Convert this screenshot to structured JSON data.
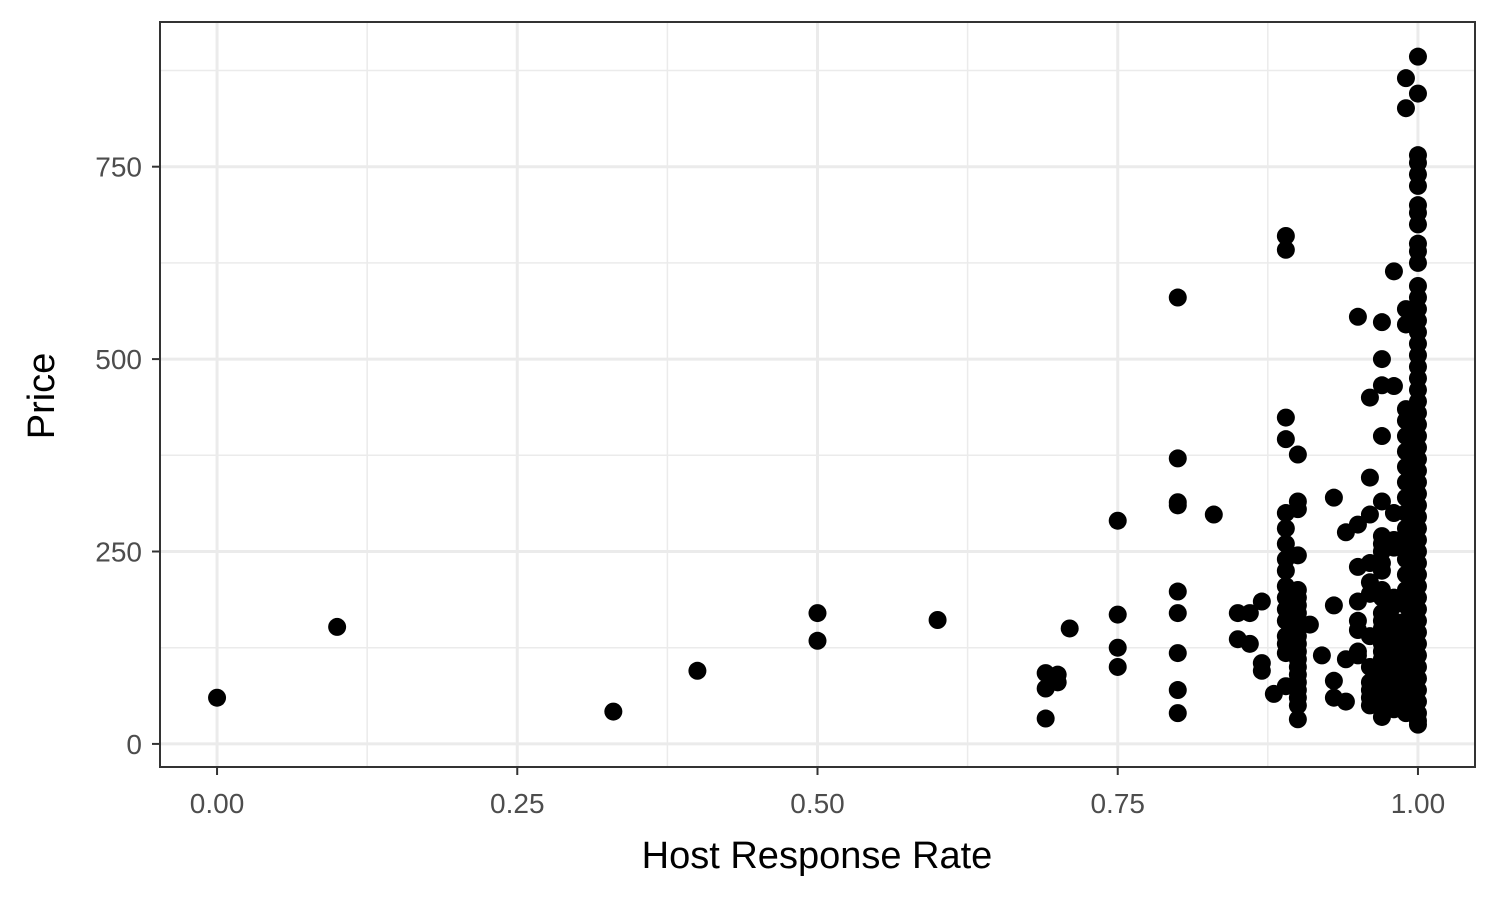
{
  "chart_data": {
    "type": "scatter",
    "title": "",
    "xlabel": "Host Response Rate",
    "ylabel": "Price",
    "xlim": [
      -0.0475,
      1.0475
    ],
    "ylim": [
      -30,
      938
    ],
    "grid": true,
    "x_ticks": [
      {
        "value": 0,
        "label": "0.00"
      },
      {
        "value": 0.25,
        "label": "0.25"
      },
      {
        "value": 0.5,
        "label": "0.50"
      },
      {
        "value": 0.75,
        "label": "0.75"
      },
      {
        "value": 1,
        "label": "1.00"
      }
    ],
    "y_ticks": [
      {
        "value": 0,
        "label": "0"
      },
      {
        "value": 250,
        "label": "250"
      },
      {
        "value": 500,
        "label": "500"
      },
      {
        "value": 750,
        "label": "750"
      }
    ],
    "point_color": "#000000",
    "points": [
      [
        0.0,
        60
      ],
      [
        0.1,
        152
      ],
      [
        0.33,
        42
      ],
      [
        0.4,
        95
      ],
      [
        0.5,
        170
      ],
      [
        0.5,
        134
      ],
      [
        0.6,
        161
      ],
      [
        0.69,
        92
      ],
      [
        0.69,
        72
      ],
      [
        0.69,
        33
      ],
      [
        0.7,
        90
      ],
      [
        0.7,
        80
      ],
      [
        0.71,
        150
      ],
      [
        0.75,
        290
      ],
      [
        0.75,
        168
      ],
      [
        0.75,
        125
      ],
      [
        0.75,
        100
      ],
      [
        0.8,
        580
      ],
      [
        0.8,
        371
      ],
      [
        0.8,
        314
      ],
      [
        0.8,
        310
      ],
      [
        0.8,
        198
      ],
      [
        0.8,
        170
      ],
      [
        0.8,
        118
      ],
      [
        0.8,
        70
      ],
      [
        0.8,
        40
      ],
      [
        0.83,
        298
      ],
      [
        0.85,
        170
      ],
      [
        0.85,
        136
      ],
      [
        0.86,
        170
      ],
      [
        0.86,
        130
      ],
      [
        0.87,
        185
      ],
      [
        0.87,
        105
      ],
      [
        0.87,
        95
      ],
      [
        0.88,
        65
      ],
      [
        0.89,
        660
      ],
      [
        0.89,
        642
      ],
      [
        0.89,
        424
      ],
      [
        0.89,
        396
      ],
      [
        0.89,
        300
      ],
      [
        0.89,
        280
      ],
      [
        0.89,
        260
      ],
      [
        0.89,
        240
      ],
      [
        0.89,
        225
      ],
      [
        0.89,
        205
      ],
      [
        0.89,
        190
      ],
      [
        0.89,
        175
      ],
      [
        0.89,
        160
      ],
      [
        0.89,
        140
      ],
      [
        0.89,
        130
      ],
      [
        0.89,
        118
      ],
      [
        0.89,
        75
      ],
      [
        0.9,
        376
      ],
      [
        0.9,
        315
      ],
      [
        0.9,
        305
      ],
      [
        0.9,
        245
      ],
      [
        0.9,
        200
      ],
      [
        0.9,
        190
      ],
      [
        0.9,
        180
      ],
      [
        0.9,
        170
      ],
      [
        0.9,
        160
      ],
      [
        0.9,
        150
      ],
      [
        0.9,
        140
      ],
      [
        0.9,
        130
      ],
      [
        0.9,
        120
      ],
      [
        0.9,
        110
      ],
      [
        0.9,
        100
      ],
      [
        0.9,
        90
      ],
      [
        0.9,
        80
      ],
      [
        0.9,
        70
      ],
      [
        0.9,
        60
      ],
      [
        0.9,
        50
      ],
      [
        0.9,
        32
      ],
      [
        0.91,
        155
      ],
      [
        0.92,
        115
      ],
      [
        0.93,
        320
      ],
      [
        0.93,
        180
      ],
      [
        0.93,
        82
      ],
      [
        0.93,
        60
      ],
      [
        0.94,
        275
      ],
      [
        0.94,
        110
      ],
      [
        0.94,
        55
      ],
      [
        0.95,
        555
      ],
      [
        0.95,
        285
      ],
      [
        0.95,
        230
      ],
      [
        0.95,
        185
      ],
      [
        0.95,
        160
      ],
      [
        0.95,
        148
      ],
      [
        0.95,
        120
      ],
      [
        0.95,
        115
      ],
      [
        0.96,
        450
      ],
      [
        0.96,
        346
      ],
      [
        0.96,
        298
      ],
      [
        0.96,
        235
      ],
      [
        0.96,
        210
      ],
      [
        0.96,
        195
      ],
      [
        0.96,
        140
      ],
      [
        0.96,
        100
      ],
      [
        0.96,
        80
      ],
      [
        0.96,
        70
      ],
      [
        0.96,
        60
      ],
      [
        0.96,
        50
      ],
      [
        0.97,
        548
      ],
      [
        0.97,
        500
      ],
      [
        0.97,
        466
      ],
      [
        0.97,
        400
      ],
      [
        0.97,
        315
      ],
      [
        0.97,
        270
      ],
      [
        0.97,
        260
      ],
      [
        0.97,
        250
      ],
      [
        0.97,
        235
      ],
      [
        0.97,
        225
      ],
      [
        0.97,
        200
      ],
      [
        0.97,
        190
      ],
      [
        0.97,
        170
      ],
      [
        0.97,
        160
      ],
      [
        0.97,
        150
      ],
      [
        0.97,
        140
      ],
      [
        0.97,
        130
      ],
      [
        0.97,
        120
      ],
      [
        0.97,
        110
      ],
      [
        0.97,
        100
      ],
      [
        0.97,
        90
      ],
      [
        0.97,
        80
      ],
      [
        0.97,
        70
      ],
      [
        0.97,
        60
      ],
      [
        0.97,
        50
      ],
      [
        0.97,
        35
      ],
      [
        0.98,
        614
      ],
      [
        0.98,
        465
      ],
      [
        0.98,
        300
      ],
      [
        0.98,
        265
      ],
      [
        0.98,
        255
      ],
      [
        0.98,
        190
      ],
      [
        0.98,
        180
      ],
      [
        0.98,
        160
      ],
      [
        0.98,
        145
      ],
      [
        0.98,
        130
      ],
      [
        0.98,
        115
      ],
      [
        0.98,
        100
      ],
      [
        0.98,
        90
      ],
      [
        0.98,
        75
      ],
      [
        0.98,
        65
      ],
      [
        0.98,
        45
      ],
      [
        0.99,
        865
      ],
      [
        0.99,
        826
      ],
      [
        0.99,
        565
      ],
      [
        0.99,
        545
      ],
      [
        0.99,
        435
      ],
      [
        0.99,
        420
      ],
      [
        0.99,
        400
      ],
      [
        0.99,
        380
      ],
      [
        0.99,
        360
      ],
      [
        0.99,
        340
      ],
      [
        0.99,
        320
      ],
      [
        0.99,
        300
      ],
      [
        0.99,
        280
      ],
      [
        0.99,
        260
      ],
      [
        0.99,
        240
      ],
      [
        0.99,
        220
      ],
      [
        0.99,
        200
      ],
      [
        0.99,
        180
      ],
      [
        0.99,
        160
      ],
      [
        0.99,
        140
      ],
      [
        0.99,
        120
      ],
      [
        0.99,
        100
      ],
      [
        0.99,
        80
      ],
      [
        0.99,
        60
      ],
      [
        0.99,
        40
      ],
      [
        1.0,
        893
      ],
      [
        1.0,
        845
      ],
      [
        1.0,
        765
      ],
      [
        1.0,
        755
      ],
      [
        1.0,
        740
      ],
      [
        1.0,
        725
      ],
      [
        1.0,
        700
      ],
      [
        1.0,
        690
      ],
      [
        1.0,
        675
      ],
      [
        1.0,
        650
      ],
      [
        1.0,
        640
      ],
      [
        1.0,
        625
      ],
      [
        1.0,
        595
      ],
      [
        1.0,
        580
      ],
      [
        1.0,
        565
      ],
      [
        1.0,
        550
      ],
      [
        1.0,
        535
      ],
      [
        1.0,
        520
      ],
      [
        1.0,
        505
      ],
      [
        1.0,
        490
      ],
      [
        1.0,
        475
      ],
      [
        1.0,
        460
      ],
      [
        1.0,
        445
      ],
      [
        1.0,
        430
      ],
      [
        1.0,
        415
      ],
      [
        1.0,
        400
      ],
      [
        1.0,
        385
      ],
      [
        1.0,
        370
      ],
      [
        1.0,
        355
      ],
      [
        1.0,
        340
      ],
      [
        1.0,
        325
      ],
      [
        1.0,
        310
      ],
      [
        1.0,
        295
      ],
      [
        1.0,
        280
      ],
      [
        1.0,
        265
      ],
      [
        1.0,
        250
      ],
      [
        1.0,
        235
      ],
      [
        1.0,
        220
      ],
      [
        1.0,
        205
      ],
      [
        1.0,
        190
      ],
      [
        1.0,
        175
      ],
      [
        1.0,
        160
      ],
      [
        1.0,
        145
      ],
      [
        1.0,
        130
      ],
      [
        1.0,
        115
      ],
      [
        1.0,
        100
      ],
      [
        1.0,
        85
      ],
      [
        1.0,
        70
      ],
      [
        1.0,
        55
      ],
      [
        1.0,
        40
      ],
      [
        1.0,
        30
      ],
      [
        1.0,
        25
      ]
    ]
  }
}
